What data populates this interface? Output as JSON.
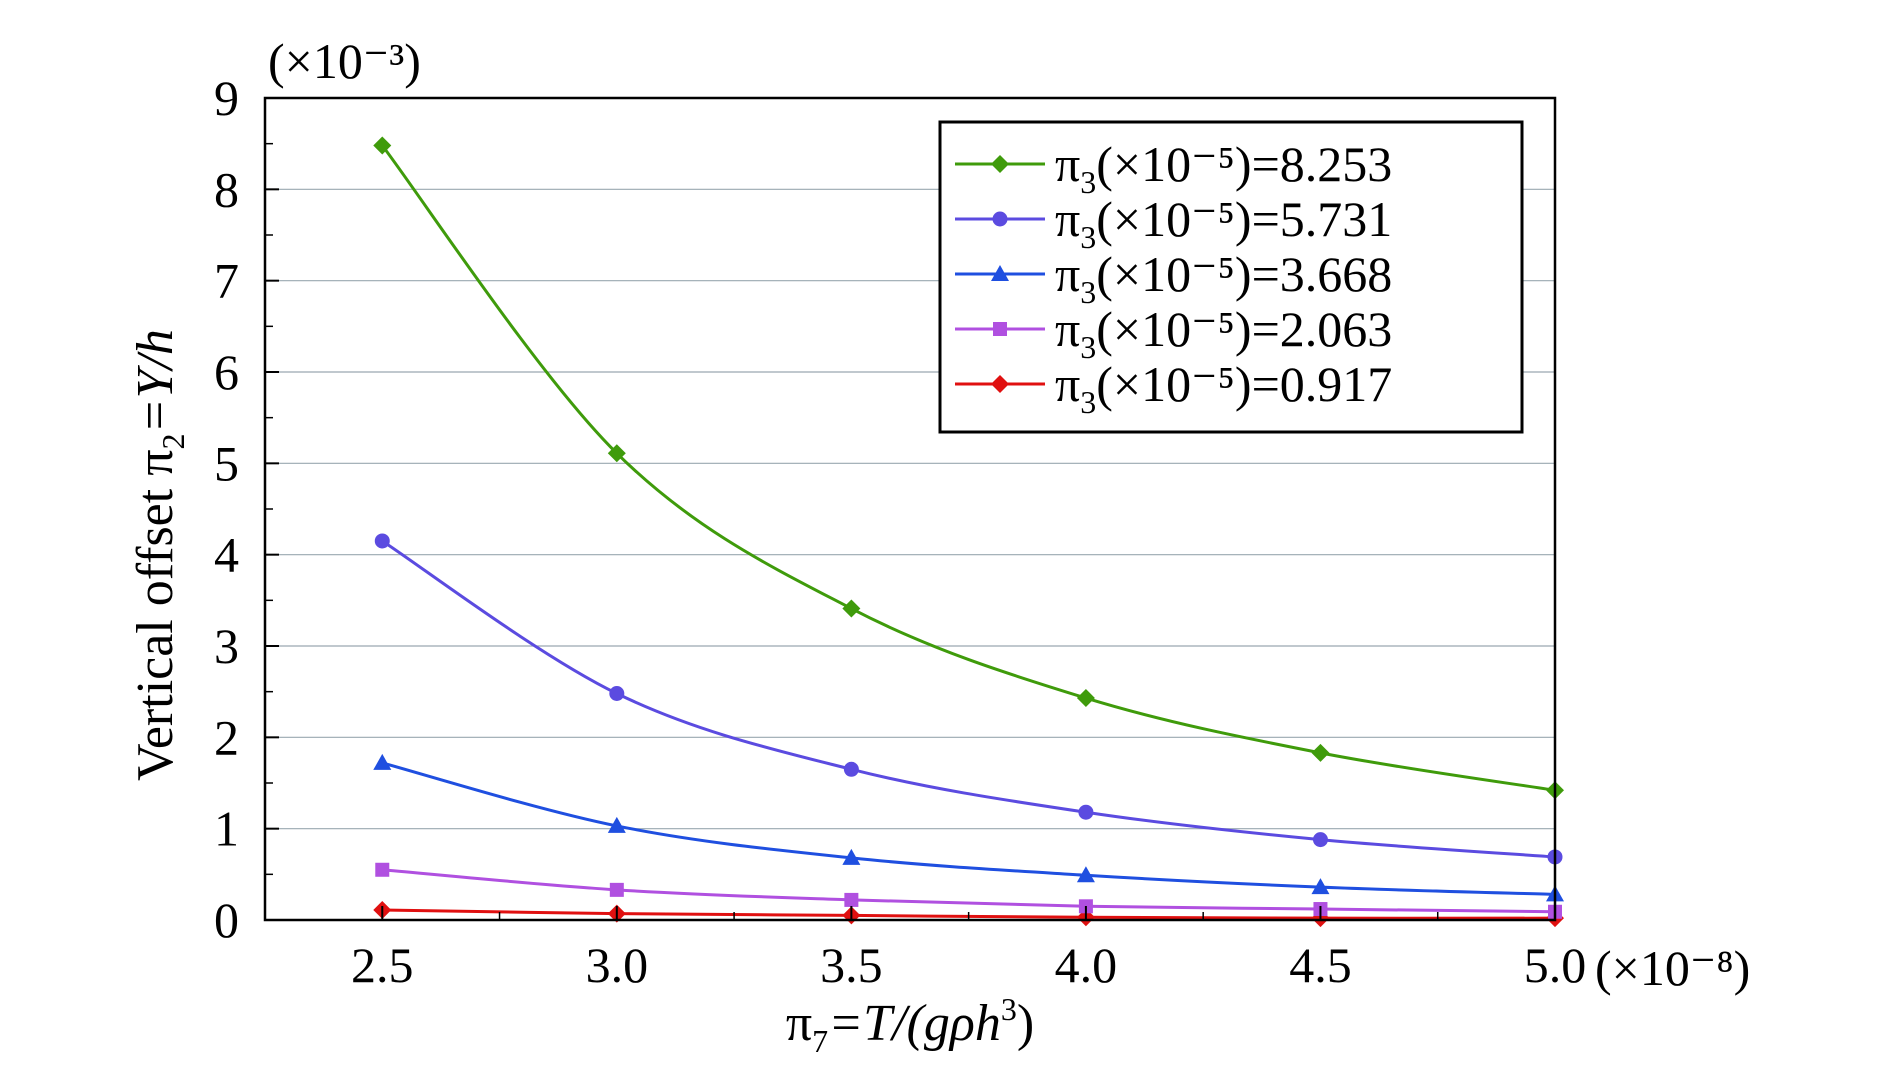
{
  "chart_data": {
    "type": "line",
    "y_multiplier": "(×10⁻³)",
    "x_multiplier": "(×10⁻⁸)",
    "xlabel": {
      "main": "π",
      "sub": "7",
      "rest": "=T/(gρh",
      "sup": "3",
      "end": ")"
    },
    "ylabel": {
      "main": "Vertical offset π",
      "sub": "2",
      "rest": "=Y/h"
    },
    "x": [
      2.5,
      3.0,
      3.5,
      4.0,
      4.5,
      5.0
    ],
    "x_tick_labels": [
      "2.5",
      "3.0",
      "3.5",
      "4.0",
      "4.5",
      "5.0"
    ],
    "y_tick_labels": [
      "0",
      "1",
      "2",
      "3",
      "4",
      "5",
      "6",
      "7",
      "8",
      "9"
    ],
    "xlim": [
      2.25,
      5.0
    ],
    "ylim": [
      0,
      9
    ],
    "grid": "horizontal",
    "legend_position": "top-right",
    "series": [
      {
        "name": "π3(×10⁻⁵)=8.253",
        "label_main": "π",
        "label_sub": "3",
        "label_rest": "(×10⁻⁵)=8.253",
        "color": "#3f9b0b",
        "marker": "diamond",
        "values": [
          8.48,
          5.11,
          3.41,
          2.43,
          1.83,
          1.42
        ]
      },
      {
        "name": "π3(×10⁻⁵)=5.731",
        "label_main": "π",
        "label_sub": "3",
        "label_rest": "(×10⁻⁵)=5.731",
        "color": "#5b4be0",
        "marker": "circle",
        "values": [
          4.15,
          2.48,
          1.65,
          1.18,
          0.88,
          0.69
        ]
      },
      {
        "name": "π3(×10⁻⁵)=3.668",
        "label_main": "π",
        "label_sub": "3",
        "label_rest": "(×10⁻⁵)=3.668",
        "color": "#1f4fe0",
        "marker": "triangle",
        "values": [
          1.72,
          1.03,
          0.68,
          0.49,
          0.36,
          0.28
        ]
      },
      {
        "name": "π3(×10⁻⁵)=2.063",
        "label_main": "π",
        "label_sub": "3",
        "label_rest": "(×10⁻⁵)=2.063",
        "color": "#b050e0",
        "marker": "square",
        "values": [
          0.55,
          0.33,
          0.22,
          0.15,
          0.12,
          0.09
        ]
      },
      {
        "name": "π3(×10⁻⁵)=0.917",
        "label_main": "π",
        "label_sub": "3",
        "label_rest": "(×10⁻⁵)=0.917",
        "color": "#e01010",
        "marker": "diamond",
        "values": [
          0.11,
          0.07,
          0.05,
          0.03,
          0.02,
          0.02
        ]
      }
    ]
  }
}
